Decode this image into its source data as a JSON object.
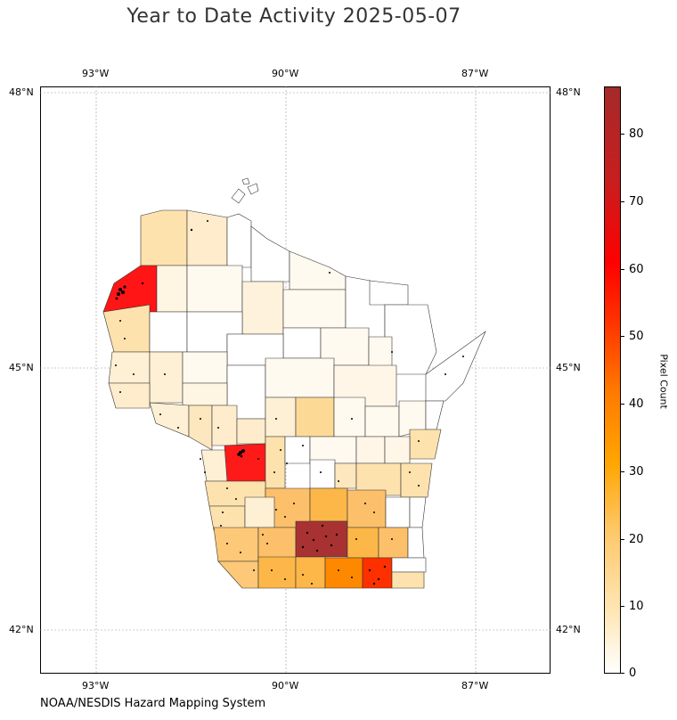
{
  "title": "Year to Date Activity 2025-05-07",
  "footer": "NOAA/NESDIS Hazard Mapping System",
  "axes": {
    "lon_ticks": [
      "93°W",
      "90°W",
      "87°W"
    ],
    "lat_ticks": [
      "48°N",
      "45°N",
      "42°N"
    ]
  },
  "colorbar": {
    "label": "Pixel Count",
    "ticks": [
      "0",
      "10",
      "20",
      "30",
      "40",
      "50",
      "60",
      "70",
      "80"
    ],
    "range": [
      0,
      87
    ],
    "colors": [
      "#ffffff",
      "#ffe7b8",
      "#fec86a",
      "#ffa500",
      "#ff7a00",
      "#ff3300",
      "#ff0000",
      "#a52a2a"
    ]
  },
  "map_data": {
    "region": "Wisconsin counties",
    "lon_range": [
      -93.9,
      -85.8
    ],
    "lat_range": [
      41.3,
      48.1
    ],
    "highest_counts": [
      {
        "value": 87,
        "color": "#a52a2a"
      },
      {
        "value": 62,
        "color": "#ff1a1a"
      },
      {
        "value": 60,
        "color": "#ff1a1a"
      },
      {
        "value": 52,
        "color": "#ff3300"
      }
    ]
  }
}
